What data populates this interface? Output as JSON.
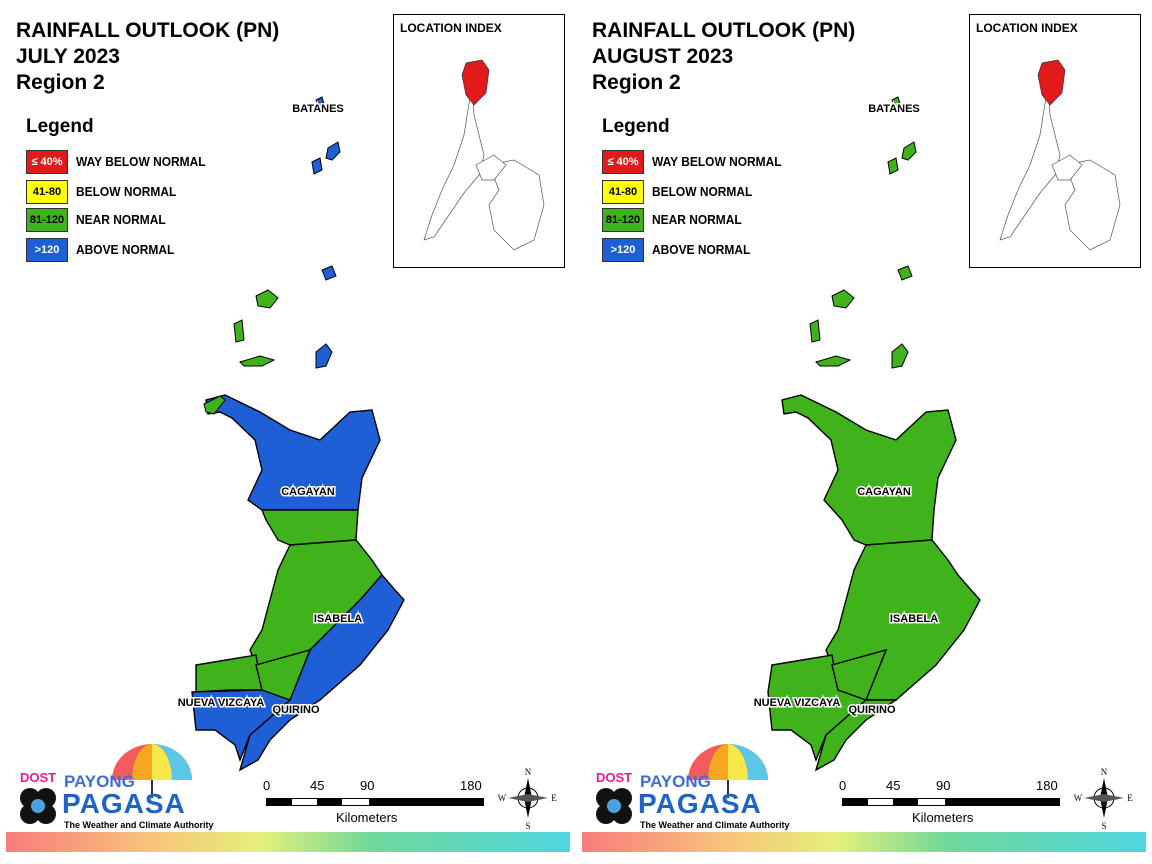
{
  "panels": [
    {
      "title_line1": "RAINFALL OUTLOOK (PN)",
      "title_line2": "JULY 2023",
      "title_line3": "Region 2",
      "provinces": {
        "cagayan": "CAGAYAN",
        "isabela": "ISABELA",
        "nueva_vizcaya": "NUEVA VIZCAYA",
        "quirino": "QUIRINO",
        "batanes": "BATANES"
      },
      "province_rainfall": {
        "batanes": "above normal",
        "cagayan": "above normal (north), near normal (south)",
        "isabela": "near normal (west), above normal (east)",
        "nueva_vizcaya": "near normal (north), above normal (south)",
        "quirino": "above normal / near normal"
      }
    },
    {
      "title_line1": "RAINFALL OUTLOOK (PN)",
      "title_line2": "AUGUST 2023",
      "title_line3": "Region 2",
      "provinces": {
        "cagayan": "CAGAYAN",
        "isabela": "ISABELA",
        "nueva_vizcaya": "NUEVA VIZCAYA",
        "quirino": "QUIRINO",
        "batanes": "BATANES"
      },
      "province_rainfall": {
        "batanes": "near normal",
        "cagayan": "near normal",
        "isabela": "near normal",
        "nueva_vizcaya": "near normal",
        "quirino": "near normal"
      }
    }
  ],
  "legend": {
    "title": "Legend",
    "items": [
      {
        "range": "≤ 40%",
        "label": "WAY BELOW NORMAL",
        "color": "#e31a1c",
        "text_color": "#ffffff"
      },
      {
        "range": "41-80",
        "label": "BELOW NORMAL",
        "color": "#ffff00",
        "text_color": "#000000"
      },
      {
        "range": "81-120",
        "label": "NEAR NORMAL",
        "color": "#3fb21c",
        "text_color": "#000000"
      },
      {
        "range": ">120",
        "label": "ABOVE NORMAL",
        "color": "#1f5fd6",
        "text_color": "#ffffff"
      }
    ]
  },
  "location_index": {
    "title": "LOCATION INDEX",
    "highlight_color": "#e31a1c"
  },
  "scale_bar": {
    "ticks": [
      "0",
      "45",
      "90",
      "180"
    ],
    "unit": "Kilometers"
  },
  "compass": {
    "n": "N",
    "s": "S",
    "e": "E",
    "w": "W"
  },
  "logo": {
    "dost": "DOST",
    "payong": "PAYONG",
    "pagasa": "PAGASA",
    "tagline": "The Weather and Climate Authority"
  },
  "colors": {
    "near_normal": "#3fb21c",
    "above_normal": "#1f5fd6"
  }
}
